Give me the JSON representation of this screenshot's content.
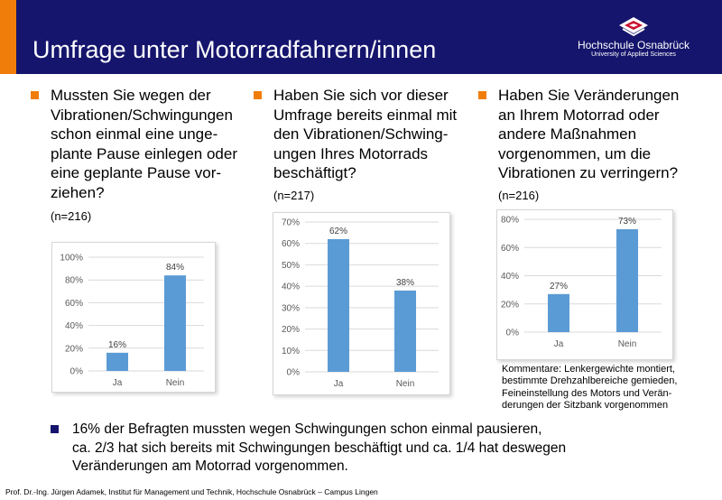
{
  "header": {
    "title": "Umfrage unter Motorradfahrern/innen",
    "logo_name": "Hochschule Osnabrück",
    "logo_subtitle": "University of Applied Sciences"
  },
  "questions": [
    {
      "text": "Mussten Sie wegen der\nVibrationen/Schwingungen\nschon einmal eine unge-\nplante Pause einlegen oder\neine geplante Pause vor-\nziehen?",
      "n": "(n=216)"
    },
    {
      "text": "Haben Sie sich vor dieser\nUmfrage bereits einmal mit\nden Vibrationen/Schwing-\nungen Ihres Motorrads\nbeschäftigt?",
      "n": "(n=217)"
    },
    {
      "text": "Haben Sie Veränderungen\nan Ihrem Motorrad oder\nandere Maßnahmen\nvorgenommen, um die\nVibrationen zu verringern?",
      "n": "(n=216)"
    }
  ],
  "chart_data": [
    {
      "type": "bar",
      "categories": [
        "Ja",
        "Nein"
      ],
      "values": [
        16,
        84
      ],
      "value_labels": [
        "16%",
        "84%"
      ],
      "ylim": [
        0,
        100
      ],
      "yticks": [
        0,
        20,
        40,
        60,
        80,
        100
      ],
      "ytick_labels": [
        "0%",
        "20%",
        "40%",
        "60%",
        "80%",
        "100%"
      ],
      "grid": true
    },
    {
      "type": "bar",
      "categories": [
        "Ja",
        "Nein"
      ],
      "values": [
        62,
        38
      ],
      "value_labels": [
        "62%",
        "38%"
      ],
      "ylim": [
        0,
        70
      ],
      "yticks": [
        0,
        10,
        20,
        30,
        40,
        50,
        60,
        70
      ],
      "ytick_labels": [
        "0%",
        "10%",
        "20%",
        "30%",
        "40%",
        "50%",
        "60%",
        "70%"
      ],
      "grid": true
    },
    {
      "type": "bar",
      "categories": [
        "Ja",
        "Nein"
      ],
      "values": [
        27,
        73
      ],
      "value_labels": [
        "27%",
        "73%"
      ],
      "ylim": [
        0,
        80
      ],
      "yticks": [
        0,
        20,
        40,
        60,
        80
      ],
      "ytick_labels": [
        "0%",
        "20%",
        "40%",
        "60%",
        "80%"
      ],
      "grid": true
    }
  ],
  "comment": "Kommentare: Lenkergewichte montiert,\nbestimmte Drehzahlbereiche gemieden,\nFeineinstellung des Motors und Verän-\nderungen der Sitzbank vorgenommen",
  "summary": "16% der Befragten mussten wegen Schwingungen schon einmal pausieren,\nca. 2/3 hat sich bereits mit Schwingungen beschäftigt und ca. 1/4 hat deswegen\nVeränderungen am Motorrad vorgenommen.",
  "footer": "Prof. Dr.-Ing. Jürgen Adamek,  Institut für Management und Technik, Hochschule Osnabrück – Campus Lingen",
  "colors": {
    "header": "#15156d",
    "accent": "#f07d0a",
    "bar": "#5b9bd5",
    "grid": "#d9d9d9",
    "axis_text": "#595959"
  }
}
